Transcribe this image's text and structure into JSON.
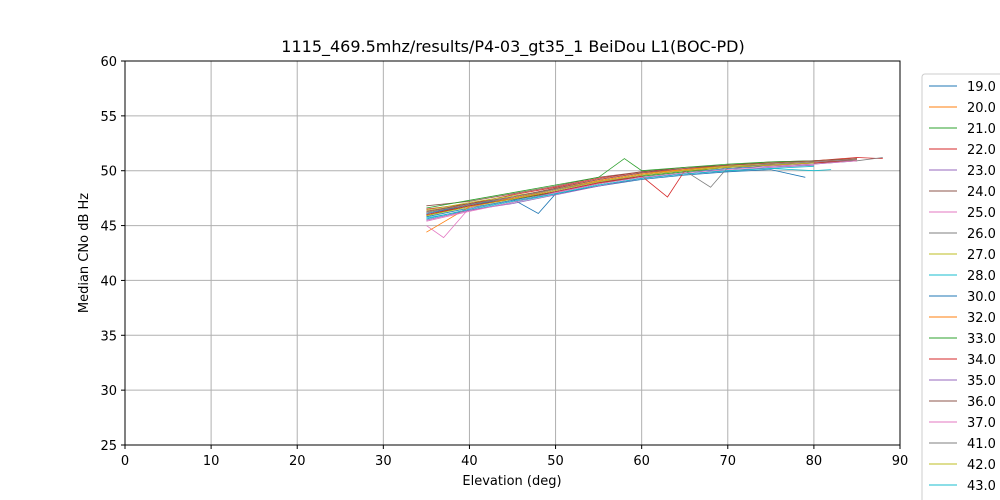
{
  "chart_data": {
    "type": "line",
    "title": "1115_469.5mhz/results/P4-03_gt35_1 BeiDou L1(BOC-PD)",
    "xlabel": "Elevation (deg)",
    "ylabel": "Median CNo dB Hz",
    "xlim": [
      0,
      90
    ],
    "ylim": [
      25,
      60
    ],
    "xticks": [
      0,
      10,
      20,
      30,
      40,
      50,
      60,
      70,
      80,
      90
    ],
    "yticks": [
      25,
      30,
      35,
      40,
      45,
      50,
      55,
      60
    ],
    "grid": true,
    "legend_position": "right, outside plot (clipped)",
    "series": [
      {
        "name": "19.0",
        "color": "#1f77b4",
        "x": [
          35,
          40,
          45,
          50,
          55,
          60,
          65,
          70,
          75,
          80,
          85
        ],
        "values": [
          45.8,
          46.6,
          47.3,
          48.1,
          48.9,
          49.4,
          49.8,
          50.2,
          50.4,
          50.6,
          50.9
        ]
      },
      {
        "name": "20.0",
        "color": "#ff7f0e",
        "x": [
          35,
          40,
          45,
          50,
          55,
          60,
          65,
          70,
          75,
          80,
          85
        ],
        "values": [
          46.2,
          47.0,
          47.6,
          48.4,
          49.2,
          49.8,
          50.1,
          50.4,
          50.6,
          50.8,
          51.0
        ]
      },
      {
        "name": "21.0",
        "color": "#2ca02c",
        "x": [
          35,
          40,
          45,
          50,
          55,
          60,
          65,
          70,
          75,
          80,
          85
        ],
        "values": [
          45.9,
          46.8,
          47.4,
          48.0,
          48.8,
          49.5,
          49.9,
          50.3,
          50.5,
          50.7,
          50.9
        ]
      },
      {
        "name": "22.0",
        "color": "#d62728",
        "x": [
          35,
          40,
          45,
          50,
          55,
          60,
          65,
          70,
          75,
          80,
          85,
          88
        ],
        "values": [
          46.5,
          47.0,
          47.8,
          48.5,
          49.3,
          49.9,
          50.2,
          50.5,
          50.7,
          50.9,
          51.2,
          51.1
        ]
      },
      {
        "name": "23.0",
        "color": "#9467bd",
        "x": [
          35,
          40,
          45,
          50,
          55,
          60,
          65,
          70,
          75,
          80
        ],
        "values": [
          45.6,
          46.5,
          47.2,
          48.0,
          48.9,
          49.6,
          50.0,
          50.3,
          50.5,
          50.7
        ]
      },
      {
        "name": "24.0",
        "color": "#8c564b",
        "x": [
          35,
          40,
          45,
          50,
          55,
          60,
          65,
          70,
          75,
          80,
          85
        ],
        "values": [
          46.8,
          47.2,
          47.9,
          48.6,
          49.4,
          49.9,
          50.3,
          50.5,
          50.8,
          50.9,
          51.1
        ]
      },
      {
        "name": "25.0",
        "color": "#e377c2",
        "x": [
          35,
          37,
          40,
          45,
          50,
          55,
          60,
          65,
          70,
          75,
          80,
          85
        ],
        "values": [
          45.0,
          43.9,
          46.6,
          47.6,
          48.4,
          49.2,
          49.8,
          50.2,
          50.4,
          50.6,
          50.8,
          51.0
        ]
      },
      {
        "name": "26.0",
        "color": "#7f7f7f",
        "x": [
          35,
          40,
          45,
          50,
          55,
          60,
          65,
          70,
          75,
          80,
          85,
          88
        ],
        "values": [
          46.0,
          46.9,
          47.5,
          48.2,
          49.0,
          49.6,
          50.0,
          50.3,
          50.5,
          50.7,
          50.9,
          51.2
        ]
      },
      {
        "name": "27.0",
        "color": "#bcbd22",
        "x": [
          35,
          40,
          45,
          50,
          55,
          60,
          65,
          70,
          75,
          80
        ],
        "values": [
          46.4,
          47.1,
          47.7,
          48.3,
          49.1,
          49.7,
          50.1,
          50.4,
          50.6,
          50.8
        ]
      },
      {
        "name": "28.0",
        "color": "#17becf",
        "x": [
          35,
          40,
          45,
          50,
          55,
          60,
          65,
          70,
          75,
          80,
          82
        ],
        "values": [
          45.7,
          46.4,
          47.1,
          47.9,
          48.7,
          49.3,
          49.7,
          50.0,
          50.2,
          50.0,
          50.1
        ]
      },
      {
        "name": "30.0",
        "color": "#1f77b4",
        "x": [
          35,
          40,
          45,
          48,
          50,
          55,
          60,
          65,
          70,
          75,
          79
        ],
        "values": [
          46.1,
          46.9,
          47.4,
          46.1,
          47.9,
          48.6,
          49.2,
          49.6,
          49.9,
          50.1,
          49.4
        ]
      },
      {
        "name": "32.0",
        "color": "#ff7f0e",
        "x": [
          35,
          40,
          45,
          50,
          55,
          60,
          65,
          70,
          75,
          80,
          85
        ],
        "values": [
          44.4,
          46.7,
          47.5,
          48.3,
          49.1,
          49.7,
          50.1,
          50.5,
          50.7,
          50.9,
          51.1
        ]
      },
      {
        "name": "33.0",
        "color": "#2ca02c",
        "x": [
          35,
          40,
          45,
          50,
          55,
          58,
          60,
          65,
          70,
          75,
          80
        ],
        "values": [
          46.6,
          47.3,
          48.0,
          48.7,
          49.4,
          51.1,
          50.0,
          50.3,
          50.6,
          50.8,
          50.9
        ]
      },
      {
        "name": "34.0",
        "color": "#d62728",
        "x": [
          35,
          40,
          45,
          50,
          55,
          60,
          63,
          65,
          70,
          75,
          80,
          85
        ],
        "values": [
          46.0,
          46.8,
          47.4,
          48.1,
          48.9,
          49.5,
          47.6,
          50.0,
          50.3,
          50.5,
          50.7,
          51.0
        ]
      },
      {
        "name": "35.0",
        "color": "#9467bd",
        "x": [
          35,
          40,
          45,
          50,
          55,
          60,
          65,
          70,
          75,
          80
        ],
        "values": [
          45.5,
          46.4,
          47.0,
          47.8,
          48.6,
          49.3,
          49.7,
          50.0,
          50.3,
          50.5
        ]
      },
      {
        "name": "36.0",
        "color": "#8c564b",
        "x": [
          35,
          40,
          45,
          50,
          55,
          60,
          65,
          70,
          75,
          80,
          85
        ],
        "values": [
          46.3,
          47.0,
          47.6,
          48.4,
          49.2,
          49.8,
          50.2,
          50.5,
          50.7,
          50.9,
          51.1
        ]
      },
      {
        "name": "37.0",
        "color": "#e377c2",
        "x": [
          35,
          40,
          45,
          50,
          55,
          60,
          65,
          70,
          75,
          80,
          85
        ],
        "values": [
          45.4,
          46.3,
          47.1,
          48.0,
          48.8,
          49.4,
          49.8,
          50.1,
          50.4,
          50.6,
          50.9
        ]
      },
      {
        "name": "41.0",
        "color": "#7f7f7f",
        "x": [
          35,
          40,
          45,
          50,
          55,
          60,
          65,
          68,
          70,
          75,
          80,
          85
        ],
        "values": [
          46.2,
          46.9,
          47.6,
          48.3,
          49.0,
          49.6,
          50.0,
          48.5,
          50.3,
          50.6,
          50.8,
          51.0
        ]
      },
      {
        "name": "42.0",
        "color": "#bcbd22",
        "x": [
          35,
          40,
          45,
          50,
          55,
          60,
          65,
          70,
          75,
          80
        ],
        "values": [
          45.9,
          46.7,
          47.4,
          48.2,
          49.0,
          49.6,
          50.0,
          50.3,
          50.5,
          50.7
        ]
      },
      {
        "name": "43.0",
        "color": "#17becf",
        "x": [
          35,
          40,
          45,
          50,
          55,
          60,
          65,
          70,
          75,
          80
        ],
        "values": [
          45.6,
          46.5,
          47.2,
          47.9,
          48.7,
          49.3,
          49.7,
          50.0,
          50.2,
          50.4
        ]
      }
    ]
  }
}
